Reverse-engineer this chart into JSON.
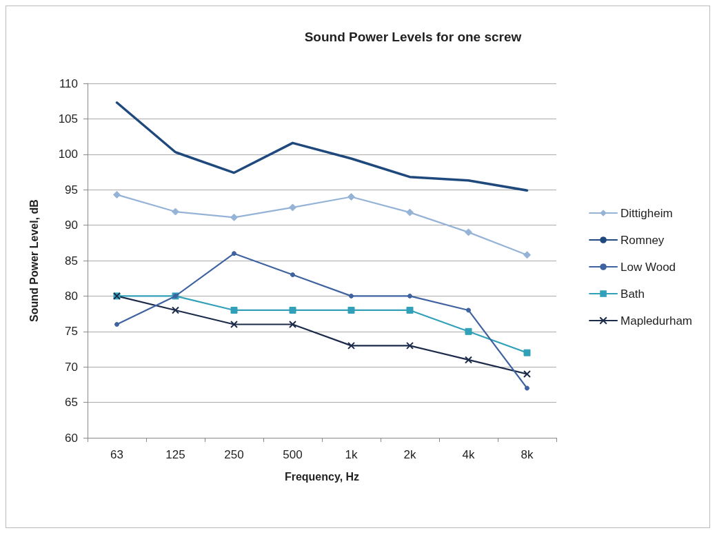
{
  "chart_data": {
    "type": "line",
    "title": "Sound Power Levels for one screw",
    "xlabel": "Frequency, Hz",
    "ylabel": "Sound Power Level, dB",
    "categories": [
      "63",
      "125",
      "250",
      "500",
      "1k",
      "2k",
      "4k",
      "8k"
    ],
    "series": [
      {
        "name": "Dittigheim",
        "color": "#95b3d7",
        "marker": "diamond",
        "values": [
          94.3,
          91.9,
          91.1,
          92.5,
          94.0,
          91.8,
          89.0,
          85.8
        ]
      },
      {
        "name": "Romney",
        "color": "#1f497d",
        "marker": "none",
        "values": [
          107.3,
          100.3,
          97.4,
          101.6,
          99.4,
          96.8,
          96.3,
          94.9
        ]
      },
      {
        "name": "Low Wood",
        "color": "#3f62a0",
        "marker": "circle",
        "values": [
          76,
          80,
          86,
          83,
          80,
          80,
          78,
          67
        ]
      },
      {
        "name": "Bath",
        "color": "#31a0b8",
        "marker": "square",
        "values": [
          80,
          80,
          78,
          78,
          78,
          78,
          75,
          72
        ]
      },
      {
        "name": "Mapledurham",
        "color": "#1c2b4a",
        "marker": "cross",
        "values": [
          80,
          78,
          76,
          76,
          73,
          73,
          71,
          69
        ]
      }
    ],
    "ylim": [
      60,
      110
    ],
    "yticks": [
      60,
      65,
      70,
      75,
      80,
      85,
      90,
      95,
      100,
      105,
      110
    ],
    "grid": "y",
    "legend": "right",
    "line_style": "solid"
  }
}
